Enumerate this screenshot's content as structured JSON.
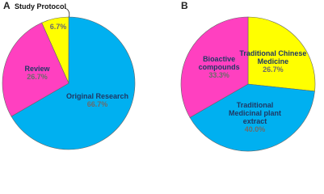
{
  "chart_data": [
    {
      "type": "pie",
      "title": "A",
      "categories": [
        "Study Protocol",
        "Original Research",
        "Review"
      ],
      "values": [
        6.7,
        66.7,
        26.7
      ],
      "value_labels": [
        "6.7%",
        "66.7%",
        "26.7%"
      ],
      "colors": [
        "#ffff00",
        "#00b0f0",
        "#ff40c0"
      ]
    },
    {
      "type": "pie",
      "title": "B",
      "categories": [
        "Traditional Chinese Medicine",
        "Traditional Medicinal plant extract",
        "Bioactive compounds"
      ],
      "values": [
        26.7,
        40.0,
        33.3
      ],
      "value_labels": [
        "26.7%",
        "40.0%",
        "33.3%"
      ],
      "colors": [
        "#ffff00",
        "#00b0f0",
        "#ff40c0"
      ]
    }
  ]
}
